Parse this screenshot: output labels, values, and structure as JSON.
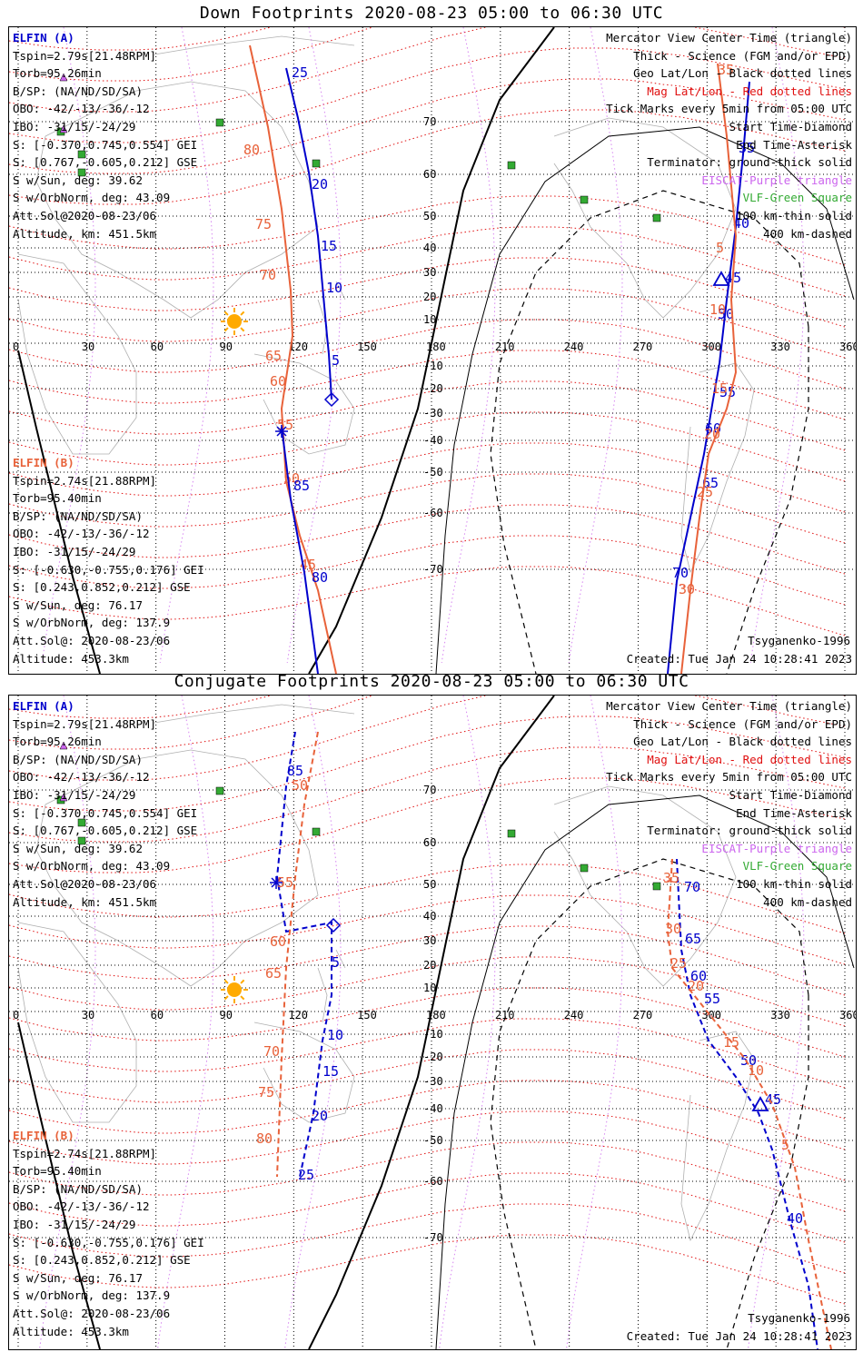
{
  "panels": [
    {
      "title": "Down Footprints 2020-08-23 05:00 to 06:30 UTC",
      "mode": "down",
      "elfin_a": {
        "label": "ELFIN (A)",
        "lines": [
          "Tspin=2.79s[21.48RPM]",
          "Torb=95.26min",
          "B/SP: (NA/ND/SD/SA)",
          "OBO: -42/-13/-36/-12",
          "IBO: -31/15/-24/29",
          "S: [-0.370,0.745,0.554] GEI",
          "S: [0.767,-0.605,0.212] GSE",
          "S w/Sun, deg: 39.62",
          "S w/OrbNorm, deg: 43.09",
          "Att.Sol@2020-08-23/06",
          "Altitude, km: 451.5km"
        ]
      },
      "elfin_b": {
        "label": "ELFIN (B)",
        "lines": [
          "Tspin=2.74s[21.88RPM]",
          "Torb=95.40min",
          "B/SP: (NA/ND/SD/SA)",
          "OBO: -42/-13/-36/-12",
          "IBO: -31/15/-24/29",
          "S: [-0.630,-0.755,0.176] GEI",
          "S: [0.243,0.852,0.212] GSE",
          "S w/Sun, deg: 76.17",
          "S w/OrbNorm, deg: 137.9",
          "Att.Sol@: 2020-08-23/06",
          "Altitude: 453.3km"
        ]
      },
      "legend": [
        {
          "text": "Mercator View Center Time (triangle)",
          "color": "#000000"
        },
        {
          "text": "Thick - Science (FGM and/or EPD)",
          "color": "#000000"
        },
        {
          "text": "Geo Lat/Lon - Black dotted lines",
          "color": "#000000"
        },
        {
          "text": "Mag Lat/Lon - Red dotted lines",
          "color": "#e01010"
        },
        {
          "text": "Tick Marks every 5min from 05:00 UTC",
          "color": "#000000"
        },
        {
          "text": "Start Time-Diamond",
          "color": "#000000"
        },
        {
          "text": "End Time-Asterisk",
          "color": "#000000"
        },
        {
          "text": "Terminator: ground-thick solid",
          "color": "#000000"
        },
        {
          "text": "EISCAT-Purple triangle",
          "color": "#cc66ee"
        },
        {
          "text": "VLF-Green Square",
          "color": "#33aa33"
        },
        {
          "text": "100 km-thin solid",
          "color": "#000000"
        },
        {
          "text": "400 km-dashed",
          "color": "#000000"
        }
      ],
      "model": "Tsyganenko-1996",
      "created": "Created: Tue Jan 24 10:28:41 2023",
      "lon_labels": [
        "0",
        "30",
        "60",
        "90",
        "120",
        "150",
        "180",
        "210",
        "240",
        "270",
        "300",
        "330",
        "360"
      ],
      "lat_labels": [
        "70",
        "60",
        "50",
        "40",
        "30",
        "20",
        "10",
        "-10",
        "-20",
        "-30",
        "-40",
        "-50",
        "-60",
        "-70"
      ],
      "tick_labels_a_west": [
        "25",
        "20",
        "15",
        "10",
        "5"
      ],
      "tick_labels_a_east": [
        "35",
        "40",
        "45",
        "50",
        "55",
        "60",
        "65",
        "70"
      ],
      "tick_labels_b_west": [
        "80",
        "75",
        "70",
        "65",
        "60",
        "55",
        "50",
        "45"
      ],
      "tick_labels_b_east": [
        "85",
        "80"
      ],
      "tick_labels_b_e2": [
        "5",
        "10",
        "15",
        "20",
        "25",
        "30",
        "35"
      ]
    },
    {
      "title": "Conjugate Footprints 2020-08-23 05:00 to 06:30 UTC",
      "mode": "conjugate",
      "elfin_a": {
        "label": "ELFIN (A)",
        "lines": [
          "Tspin=2.79s[21.48RPM]",
          "Torb=95.26min",
          "B/SP: (NA/ND/SD/SA)",
          "OBO: -42/-13/-36/-12",
          "IBO: -31/15/-24/29",
          "S: [-0.370,0.745,0.554] GEI",
          "S: [0.767,-0.605,0.212] GSE",
          "S w/Sun, deg: 39.62",
          "S w/OrbNorm, deg: 43.09",
          "Att.Sol@2020-08-23/06",
          "Altitude, km: 451.5km"
        ]
      },
      "elfin_b": {
        "label": "ELFIN (B)",
        "lines": [
          "Tspin=2.74s[21.88RPM]",
          "Torb=95.40min",
          "B/SP: (NA/ND/SD/SA)",
          "OBO: -42/-13/-36/-12",
          "IBO: -31/15/-24/29",
          "S: [-0.630,-0.755,0.176] GEI",
          "S: [0.243,0.852,0.212] GSE",
          "S w/Sun, deg: 76.17",
          "S w/OrbNorm, deg: 137.9",
          "Att.Sol@: 2020-08-23/06",
          "Altitude: 453.3km"
        ]
      },
      "legend": [
        {
          "text": "Mercator View Center Time (triangle)",
          "color": "#000000"
        },
        {
          "text": "Thick - Science (FGM and/or EPD)",
          "color": "#000000"
        },
        {
          "text": "Geo Lat/Lon - Black dotted lines",
          "color": "#000000"
        },
        {
          "text": "Mag Lat/Lon - Red dotted lines",
          "color": "#e01010"
        },
        {
          "text": "Tick Marks every 5min from 05:00 UTC",
          "color": "#000000"
        },
        {
          "text": "Start Time-Diamond",
          "color": "#000000"
        },
        {
          "text": "End Time-Asterisk",
          "color": "#000000"
        },
        {
          "text": "Terminator: ground-thick solid",
          "color": "#000000"
        },
        {
          "text": "EISCAT-Purple triangle",
          "color": "#cc66ee"
        },
        {
          "text": "VLF-Green Square",
          "color": "#33aa33"
        },
        {
          "text": "100 km-thin solid",
          "color": "#000000"
        },
        {
          "text": "400 km-dashed",
          "color": "#000000"
        }
      ],
      "model": "Tsyganenko-1996",
      "created": "Created: Tue Jan 24 10:28:41 2023",
      "lon_labels": [
        "0",
        "30",
        "60",
        "90",
        "120",
        "150",
        "180",
        "210",
        "240",
        "270",
        "300",
        "330",
        "360"
      ],
      "lat_labels": [
        "70",
        "60",
        "50",
        "40",
        "30",
        "20",
        "10",
        "-10",
        "-20",
        "-30",
        "-40",
        "-50",
        "-60",
        "-70"
      ],
      "tick_labels_a_west": [
        "85",
        "5",
        "10",
        "15",
        "20",
        "25"
      ],
      "tick_labels_a_east": [
        "70",
        "65",
        "60",
        "55",
        "50",
        "45",
        "40"
      ],
      "tick_labels_b_west": [
        "50",
        "55",
        "60",
        "65",
        "70",
        "75",
        "80"
      ],
      "tick_labels_b_east": [
        "35",
        "30",
        "25",
        "20",
        "15",
        "10",
        "5"
      ]
    }
  ],
  "colors": {
    "elfin_a": "#0000cc",
    "elfin_b": "#e8623a",
    "mag_grid": "#e01010",
    "geo_grid": "#000000",
    "eiscat": "#cc66ee",
    "vlf": "#33aa33",
    "sun": "#ffaa00",
    "coast": "#b0b0b0"
  }
}
